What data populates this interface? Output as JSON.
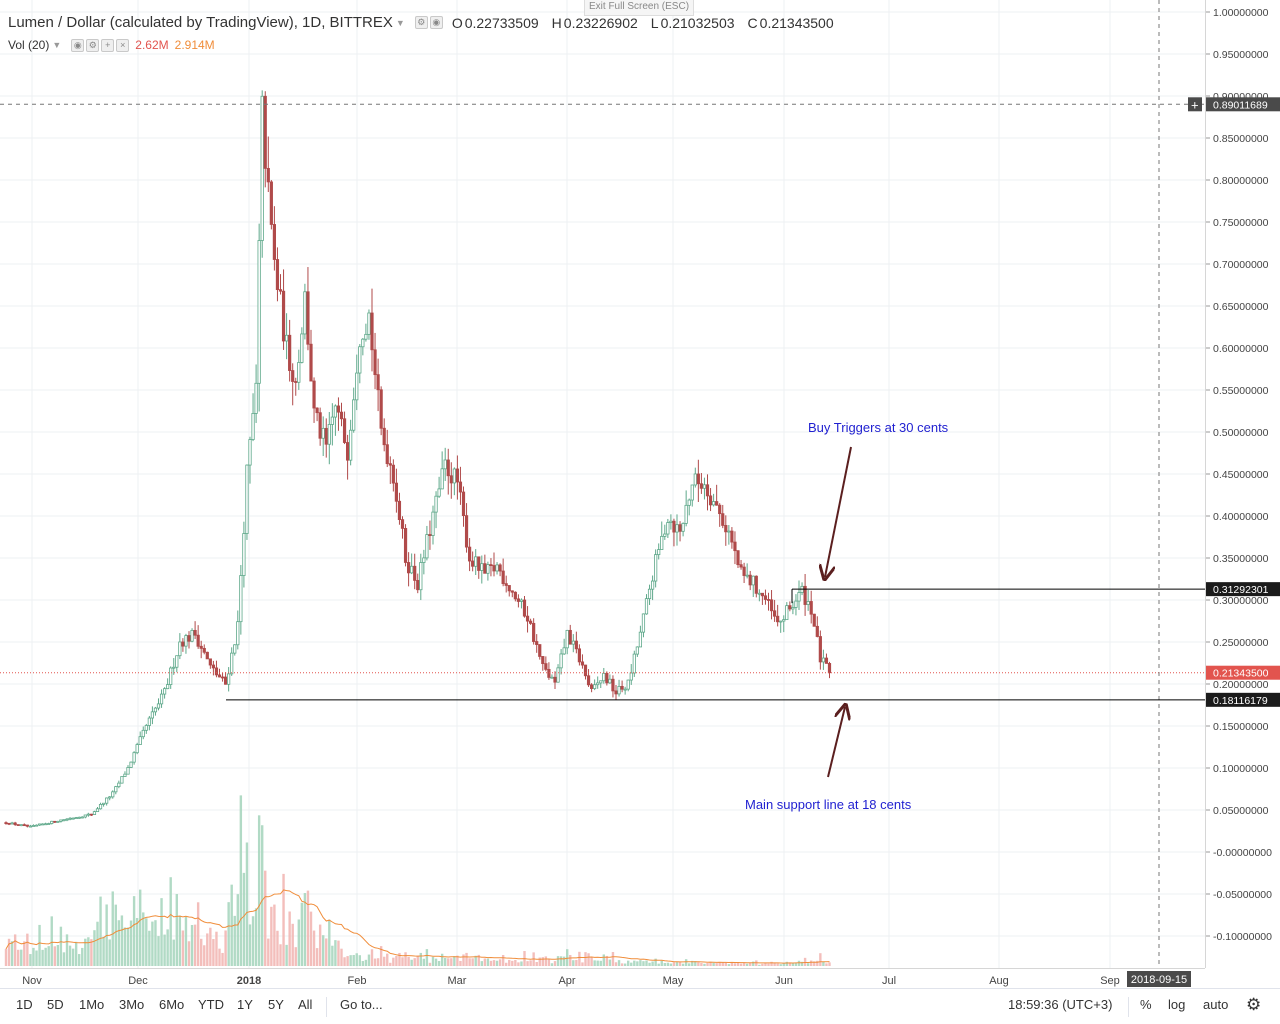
{
  "legend": {
    "title": "Lumen / Dollar (calculated by TradingView), 1D, BITTREX",
    "o_label": "O",
    "o_value": "0.22733509",
    "h_label": "H",
    "h_value": "0.23226902",
    "l_label": "L",
    "l_value": "0.21032503",
    "c_label": "C",
    "c_value": "0.21343500",
    "volume_label": "Vol (20)",
    "volume_value": "2.62M",
    "volume_ma_value": "2.914M"
  },
  "exit_fullscreen": "Exit Full Screen (ESC)",
  "price_scale": {
    "ticks": [
      "1.00000000",
      "0.95000000",
      "0.90000000",
      "0.85000000",
      "0.80000000",
      "0.75000000",
      "0.70000000",
      "0.65000000",
      "0.60000000",
      "0.55000000",
      "0.50000000",
      "0.45000000",
      "0.40000000",
      "0.35000000",
      "0.30000000",
      "0.25000000",
      "0.20000000",
      "0.15000000",
      "0.10000000",
      "0.05000000",
      "-0.00000000",
      "-0.05000000",
      "-0.10000000"
    ],
    "tick_values": [
      1.0,
      0.95,
      0.9,
      0.85,
      0.8,
      0.75,
      0.7,
      0.65,
      0.6,
      0.55,
      0.5,
      0.45,
      0.4,
      0.35,
      0.3,
      0.25,
      0.2,
      0.15,
      0.1,
      0.05,
      0.0,
      -0.05,
      -0.1
    ],
    "crosshair_label": "0.89011689",
    "crosshair_value": 0.89011689,
    "resistance_label": "0.31292301",
    "resistance_value": 0.31292301,
    "last_price_label": "0.21343500",
    "last_price_value": 0.213435,
    "support_label": "0.18116179",
    "support_value": 0.18116179,
    "plus_icon": "plus-icon"
  },
  "time_scale": {
    "labels": [
      "Nov",
      "Dec",
      "2018",
      "Feb",
      "Mar",
      "Apr",
      "May",
      "Jun",
      "Jul",
      "Aug",
      "Sep"
    ],
    "crosshair_date": "2018-09-15"
  },
  "annotations": {
    "buy_trigger": "Buy Triggers at 30 cents",
    "support": "Main support line at 18 cents"
  },
  "colors": {
    "up": "#5ea88a",
    "down": "#b04a4a",
    "vol_up": "#a9d6bf",
    "vol_down": "#f2b7b4",
    "vol_ma": "#f08d3a",
    "annotation_text": "#1f1fd0",
    "arrow": "#5b1f1f",
    "last_price": "#e2544e",
    "scale_label_dark": "#1b1b1b",
    "crosshair_label_bg": "#4a4a4a"
  },
  "chart_data": {
    "type": "candlestick",
    "x_unit": "month",
    "x_ticks": [
      "Nov",
      "Dec",
      "2018",
      "Feb",
      "Mar",
      "Apr",
      "May",
      "Jun",
      "Jul",
      "Aug",
      "Sep"
    ],
    "ylim": [
      -0.12,
      1.01
    ],
    "grid": true,
    "key_points": [
      {
        "x": "Nov 2017",
        "y": 0.035
      },
      {
        "x": "Dec 2017",
        "y": 0.08
      },
      {
        "x": "mid Dec 2017",
        "y": 0.27
      },
      {
        "x": "2018",
        "y": 0.9
      },
      {
        "x": "late Jan 2018",
        "y": 0.64
      },
      {
        "x": "mid Feb 2018",
        "y": 0.47
      },
      {
        "x": "Mar 2018",
        "y": 0.35
      },
      {
        "x": "early Apr 2018",
        "y": 0.19
      },
      {
        "x": "May 2018",
        "y": 0.46
      },
      {
        "x": "early Jun 2018",
        "y": 0.3
      },
      {
        "x": "mid Jun 2018",
        "y": 0.213
      }
    ],
    "horizontal_lines": [
      0.31292301,
      0.18116179
    ],
    "last_close": 0.213435
  },
  "toolbar": {
    "intervals": [
      "1D",
      "5D",
      "1Mo",
      "3Mo",
      "6Mo",
      "YTD",
      "1Y",
      "5Y",
      "All"
    ],
    "goto": "Go to...",
    "clock": "18:59:36 (UTC+3)",
    "percent": "%",
    "log": "log",
    "auto": "auto",
    "settings_icon": "gear-icon"
  }
}
